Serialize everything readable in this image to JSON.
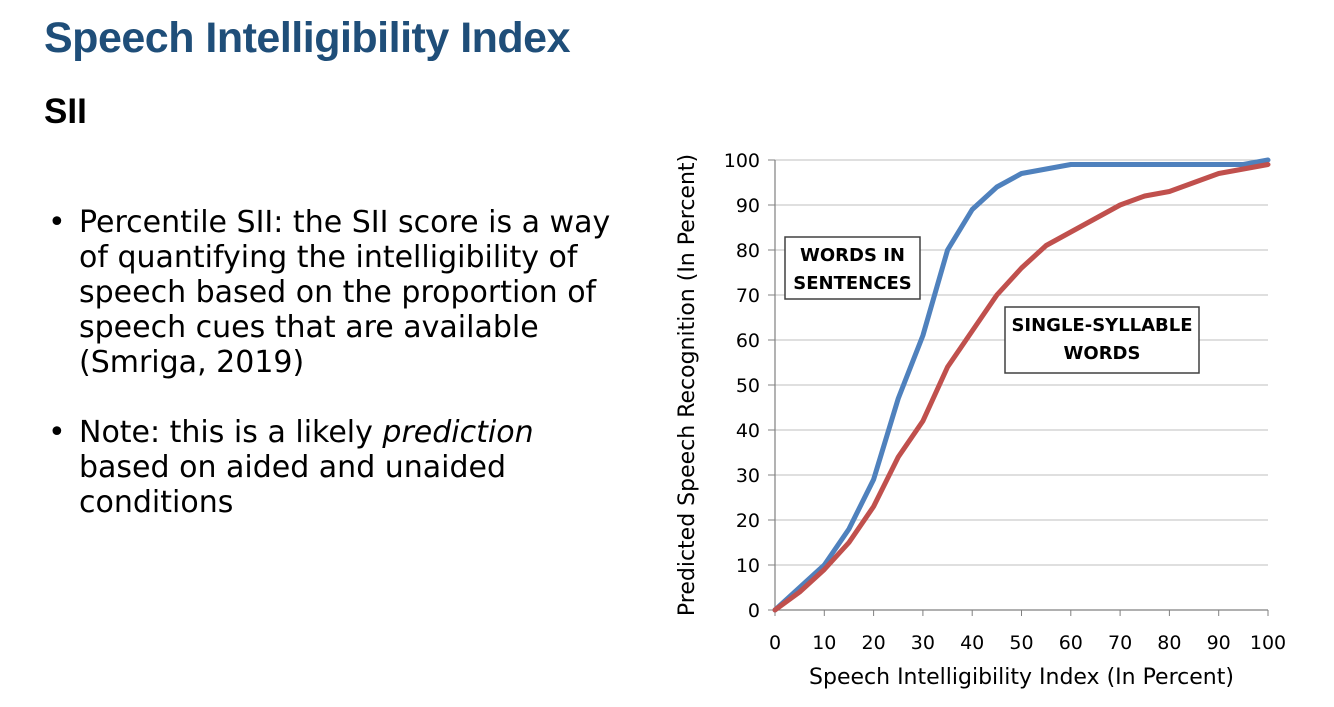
{
  "slide": {
    "title": "Speech Intelligibility Index",
    "subtitle": "SII",
    "bullets": [
      {
        "before": "Percentile SII: the SII score is a way of quantifying the intelligibility of speech based on the proportion of speech cues that are available (Smriga, 2019)",
        "emphasis": "",
        "after": ""
      },
      {
        "before": "Note: this is a likely ",
        "emphasis": "prediction",
        "after": " based on aided and unaided conditions"
      }
    ]
  },
  "chart_data": {
    "type": "line",
    "title": "",
    "xlabel": "Speech Intelligibility Index (In Percent)",
    "ylabel": "Predicted Speech Recognition (In Percent)",
    "xlim": [
      0,
      100
    ],
    "ylim": [
      0,
      100
    ],
    "xticks": [
      0,
      10,
      20,
      30,
      40,
      50,
      60,
      70,
      80,
      90,
      100
    ],
    "yticks": [
      0,
      10,
      20,
      30,
      40,
      50,
      60,
      70,
      80,
      90,
      100
    ],
    "grid": true,
    "x": [
      0,
      5,
      10,
      15,
      20,
      25,
      30,
      35,
      40,
      45,
      50,
      55,
      60,
      65,
      70,
      75,
      80,
      85,
      90,
      95,
      100
    ],
    "series": [
      {
        "name": "WORDS IN SENTENCES",
        "color": "#4f81bd",
        "values": [
          0,
          5,
          10,
          18,
          29,
          47,
          61,
          80,
          89,
          94,
          97,
          98,
          99,
          99,
          99,
          99,
          99,
          99,
          99,
          99,
          100
        ]
      },
      {
        "name": "SINGLE-SYLLABLE WORDS",
        "color": "#c0504d",
        "values": [
          0,
          4,
          9,
          15,
          23,
          34,
          42,
          54,
          62,
          70,
          76,
          81,
          84,
          87,
          90,
          92,
          93,
          95,
          97,
          98,
          99
        ]
      }
    ],
    "annotations": [
      {
        "lines": [
          "WORDS IN",
          "SENTENCES"
        ],
        "series": "WORDS IN SENTENCES"
      },
      {
        "lines": [
          "SINGLE-SYLLABLE",
          "WORDS"
        ],
        "series": "SINGLE-SYLLABLE WORDS"
      }
    ]
  }
}
